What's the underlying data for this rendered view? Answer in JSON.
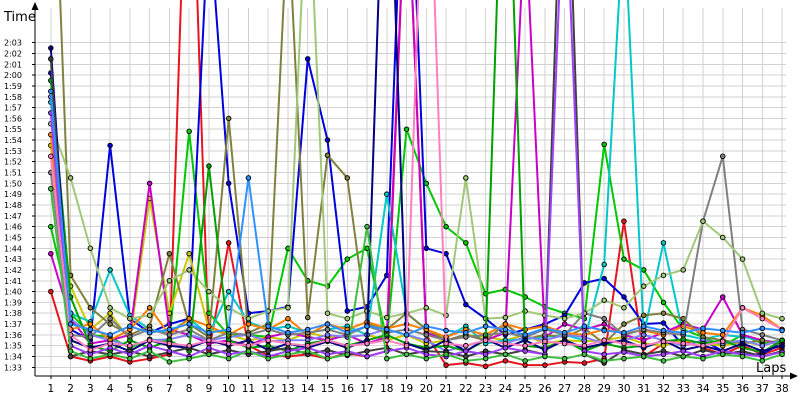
{
  "chart_data": {
    "type": "line",
    "title": "",
    "ylabel": "Time",
    "xlabel": "Laps",
    "x": [
      1,
      2,
      3,
      4,
      5,
      6,
      7,
      8,
      9,
      10,
      11,
      12,
      13,
      14,
      15,
      16,
      17,
      18,
      19,
      20,
      21,
      22,
      23,
      24,
      25,
      26,
      27,
      28,
      29,
      30,
      31,
      32,
      33,
      34,
      35,
      36,
      37,
      38
    ],
    "x_tick_labels": [
      "1",
      "2",
      "3",
      "4",
      "5",
      "6",
      "7",
      "8",
      "9",
      "10",
      "11",
      "12",
      "13",
      "14",
      "15",
      "16",
      "17",
      "18",
      "19",
      "20",
      "21",
      "22",
      "23",
      "24",
      "25",
      "26",
      "27",
      "28",
      "29",
      "30",
      "31",
      "32",
      "33",
      "34",
      "35",
      "36",
      "37",
      "38"
    ],
    "y_tick_labels": [
      "1:33",
      "1:34",
      "1:35",
      "1:36",
      "1:37",
      "1:38",
      "1:39",
      "1:40",
      "1:41",
      "1:42",
      "1:43",
      "1:44",
      "1:45",
      "1:46",
      "1:47",
      "1:48",
      "1:49",
      "1:50",
      "1:51",
      "1:52",
      "1:53",
      "1:54",
      "1:55",
      "1:56",
      "1:57",
      "1:58",
      "1:59",
      "2:00",
      "2:01",
      "2:02",
      "2:03"
    ],
    "y_tick_values": [
      93,
      94,
      95,
      96,
      97,
      98,
      99,
      100,
      101,
      102,
      103,
      104,
      105,
      106,
      107,
      108,
      109,
      110,
      111,
      112,
      113,
      114,
      115,
      116,
      117,
      118,
      119,
      120,
      121,
      122,
      123
    ],
    "ylim": [
      92.2,
      126.2
    ],
    "xlim": [
      0.2,
      38.2
    ],
    "y_unit": "seconds",
    "grid": true,
    "series": [
      {
        "color": "#e8141e",
        "values": [
          100,
          94,
          93.6,
          94,
          93.5,
          93.8,
          94.2,
          150,
          94.5,
          104.5,
          95,
          94.1,
          94,
          94.2,
          93.8,
          94.3,
          94,
          94.5,
          140,
          96,
          93.2,
          93.4,
          93.1,
          93.6,
          93.2,
          93.2,
          93.5,
          93.4,
          93.8,
          106.5,
          94,
          95.2,
          95.5,
          94.8,
          94.2,
          95,
          94.2,
          94.8
        ]
      },
      {
        "color": "#00c800",
        "values": [
          106,
          98,
          96,
          95.8,
          94.8,
          95.6,
          95.4,
          114.8,
          98,
          96,
          96,
          95.8,
          104,
          101,
          100.5,
          103,
          104,
          95.5,
          115,
          110,
          106,
          104.5,
          99.8,
          100.2,
          99.5,
          98.6,
          98,
          97.5,
          113.6,
          103,
          102,
          99,
          96.5,
          95.8,
          95,
          96,
          95.2,
          95.5
        ]
      },
      {
        "color": "#0000dc",
        "values": [
          120.2,
          96.5,
          95.5,
          113.5,
          97.5,
          96.2,
          97,
          97.5,
          135,
          110,
          98,
          98.2,
          98.6,
          121.5,
          114,
          98.2,
          98.6,
          101.5,
          150,
          104,
          103.5,
          98.8,
          97.5,
          96,
          96.5,
          97,
          97.8,
          100.8,
          101.2,
          99.5,
          97,
          97.1,
          95,
          95.5,
          94.5,
          94.2,
          94.2,
          95.3
        ]
      },
      {
        "color": "#c8c800",
        "values": [
          113.5,
          100.5,
          96.5,
          98,
          95.5,
          108.6,
          98,
          103.5,
          96.5,
          96,
          95.5,
          95.8,
          95.5,
          96.2,
          95.8,
          95.8,
          96,
          95.5,
          96,
          95.2,
          95.5,
          96,
          95.8,
          95.5,
          96,
          95.2,
          95.5,
          95.4,
          95.5,
          95.8,
          95.2,
          95,
          95.5,
          95.2,
          95,
          95.4,
          95,
          95.5
        ]
      },
      {
        "color": "#00c8c8",
        "values": [
          117.5,
          98,
          97.2,
          102,
          97.8,
          96.5,
          96.2,
          97.5,
          96,
          100,
          97.2,
          96.5,
          96.8,
          96.2,
          96.5,
          96.8,
          96,
          109,
          98,
          96.5,
          95.8,
          96.8,
          95.2,
          95.5,
          95.6,
          95.8,
          96,
          95.5,
          102.5,
          135,
          96,
          104.5,
          96,
          95.6,
          96,
          95.8,
          95.5,
          95.2
        ]
      },
      {
        "color": "#c800c8",
        "values": [
          103.5,
          97.5,
          95.2,
          95.5,
          96,
          110,
          96.5,
          96,
          95.2,
          95.5,
          95,
          95.8,
          96.2,
          95.8,
          95.5,
          96,
          95.2,
          95.8,
          140,
          96.2,
          95.5,
          96,
          95.5,
          96.2,
          135,
          95.8,
          97,
          96.5,
          97,
          96,
          95.5,
          96.2,
          97,
          96.5,
          99.5,
          96,
          95.5,
          95.2
        ]
      },
      {
        "color": "#808040",
        "values": [
          150,
          101.5,
          98.5,
          97,
          96,
          96.8,
          103.5,
          97,
          95.8,
          116,
          96.2,
          97,
          135,
          97.6,
          112.6,
          110.5,
          97,
          96.5,
          98,
          96.5,
          95.5,
          96,
          95.5,
          97,
          95.6,
          96,
          95.8,
          96.6,
          95.2,
          97,
          97.8,
          98,
          97.5,
          95.8,
          95.5,
          95.2,
          95.5,
          95
        ]
      },
      {
        "color": "#8080ff",
        "values": [
          118,
          97.5,
          96,
          95.5,
          95,
          95.5,
          95.6,
          96,
          95.5,
          95.8,
          96,
          95.4,
          95.5,
          95.5,
          96,
          95.8,
          96,
          96.5,
          96,
          95.5,
          94.5,
          95,
          95.5,
          95.2,
          95.8,
          95.5,
          96,
          95.8,
          95.2,
          95.5,
          96,
          95.5,
          95,
          95.5,
          95.2,
          95.5,
          95,
          95.5
        ]
      },
      {
        "color": "#ff8000",
        "values": [
          114.5,
          96.5,
          97,
          95.5,
          96.5,
          98.5,
          96,
          97.5,
          96.8,
          96,
          97,
          96.5,
          97.5,
          96,
          97,
          96.5,
          97.2,
          96.6,
          97,
          96.5,
          95.8,
          96.5,
          96,
          97,
          96.5,
          96.8,
          96.2,
          96,
          96.5,
          96.2,
          96.4,
          96,
          96.8,
          96.2,
          96,
          98.5,
          97.8,
          96.5
        ]
      },
      {
        "color": "#808080",
        "values": [
          111,
          96,
          95.8,
          97.5,
          95.8,
          96.5,
          96,
          96.5,
          95.5,
          96.2,
          96,
          96.5,
          96,
          96.2,
          96.5,
          96,
          96.8,
          96.2,
          96.5,
          96,
          95.5,
          95.8,
          96,
          96.2,
          95.8,
          96.5,
          96,
          98,
          97.5,
          96,
          96.5,
          96.2,
          96,
          106.5,
          112.5,
          96.5,
          96,
          95.5
        ]
      },
      {
        "color": "#a0c878",
        "values": [
          115.5,
          110.5,
          104,
          98.5,
          97.5,
          97.8,
          101,
          102,
          100,
          98.5,
          97.5,
          98.2,
          98.5,
          140,
          98,
          97.5,
          98.2,
          97.6,
          98,
          98.5,
          97.8,
          110.5,
          97.5,
          97.6,
          98.2,
          97.8,
          97.5,
          98,
          99.2,
          98.5,
          100.5,
          101.5,
          102,
          106.5,
          105,
          103,
          98,
          97.5
        ]
      },
      {
        "color": "#00a000",
        "values": [
          119.5,
          99.5,
          95,
          94.5,
          95.5,
          94.8,
          95.5,
          94.5,
          111.6,
          95.5,
          94.8,
          95,
          94.5,
          95.2,
          95.5,
          95,
          95.5,
          96,
          95.2,
          94.8,
          95,
          94.5,
          95.5,
          150,
          95,
          94.8,
          95.5,
          94.5,
          95.2,
          94.8,
          95,
          95.4,
          95.6,
          95.2,
          95.5,
          94.8,
          94.4,
          95.5
        ]
      },
      {
        "color": "#000080",
        "values": [
          122.5,
          95.5,
          94.8,
          95.2,
          94.5,
          95.5,
          95,
          94.8,
          95.5,
          95,
          95.5,
          94.6,
          95.2,
          94.8,
          95.4,
          94.8,
          95.5,
          150,
          95.2,
          94.6,
          95.5,
          94.5,
          95.6,
          94.8,
          95.5,
          94.6,
          95.5,
          94.8,
          95.2,
          95.5,
          94.8,
          95.5,
          94.6,
          95,
          94.5,
          95.2,
          94.5,
          95
        ]
      },
      {
        "color": "#404040",
        "values": [
          121.5,
          94,
          94.5,
          94.2,
          94.5,
          94,
          94.4,
          94.8,
          94.2,
          94.6,
          94.2,
          94.5,
          94.8,
          94.2,
          94.6,
          94.1,
          94.5,
          94.8,
          94.2,
          94.5,
          94.4,
          94,
          94.5,
          94.2,
          94.6,
          94.2,
          150,
          94.2,
          93.4,
          94.6,
          94.2,
          94.5,
          94,
          94.6,
          94.2,
          94.5,
          94,
          94.5
        ]
      },
      {
        "color": "#a040ff",
        "values": [
          116.5,
          95,
          94.2,
          94.8,
          94.2,
          95,
          94.5,
          94,
          94.8,
          94.2,
          94.5,
          94,
          94.5,
          94.8,
          94.2,
          94.5,
          94,
          94.5,
          94.8,
          94.2,
          94,
          94.5,
          94.2,
          94.8,
          94.5,
          94.2,
          140,
          94.5,
          94.2,
          94.4,
          94,
          94.2,
          94.5,
          94,
          94.5,
          94.2,
          94,
          94.4
        ]
      },
      {
        "color": "#ff80c0",
        "values": [
          112.5,
          96,
          94.6,
          95.2,
          95,
          95.5,
          95.2,
          95,
          95.5,
          95.2,
          95,
          95.5,
          95.2,
          95,
          95.5,
          95,
          95.2,
          95.5,
          95,
          150,
          95.2,
          95,
          95.5,
          95.2,
          95,
          95.4,
          95.2,
          95,
          95.5,
          95.2,
          95,
          95.4,
          95.2,
          95,
          95.4,
          98.5,
          97.5,
          96.5
        ]
      },
      {
        "color": "#40c040",
        "values": [
          109.5,
          94.5,
          93.8,
          94.2,
          93.8,
          94.5,
          93.5,
          93.8,
          94.2,
          93.8,
          94.5,
          93.8,
          94.2,
          94.5,
          93.8,
          94.2,
          106,
          93.8,
          94.2,
          93.8,
          94.2,
          93.6,
          93.8,
          94.2,
          93.6,
          94,
          93.8,
          94.2,
          93.6,
          93.8,
          94,
          93.6,
          94,
          93.8,
          94.2,
          94,
          93.6,
          94.2
        ]
      },
      {
        "color": "#3090ff",
        "values": [
          118.5,
          97,
          96.5,
          96,
          96.8,
          96.2,
          96.5,
          97,
          96.2,
          96.5,
          110.5,
          96.8,
          96.2,
          96.5,
          97,
          96.2,
          96.8,
          96.5,
          96,
          96.8,
          96.4,
          96.2,
          96.8,
          96.5,
          96,
          96.6,
          96.2,
          96.8,
          96.4,
          96.2,
          96.8,
          96.4,
          96.2,
          96.6,
          96.4,
          96.2,
          96.6,
          96.4
        ]
      }
    ]
  }
}
